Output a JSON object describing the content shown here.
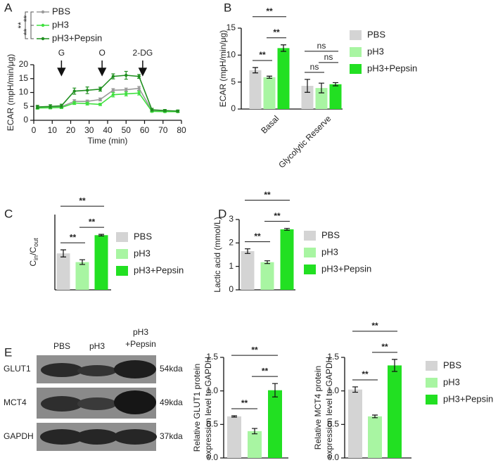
{
  "chart_data": [
    {
      "type": "line",
      "panel": "A",
      "x_label": "Time (min)",
      "y_label": "ECAR (mpH/min/μg)",
      "x": [
        2,
        9,
        15,
        22,
        29,
        36,
        43,
        50,
        57,
        64,
        71,
        78
      ],
      "xlim": [
        0,
        80
      ],
      "xticks": [
        0,
        10,
        20,
        30,
        40,
        50,
        60,
        70,
        80
      ],
      "ylim": [
        0,
        20
      ],
      "yticks": [
        0,
        5,
        10,
        15,
        20
      ],
      "series": [
        {
          "name": "PBS",
          "color": "#9a9a9a",
          "values": [
            4.6,
            4.7,
            4.9,
            6.8,
            6.8,
            7.5,
            10.8,
            11.0,
            11.5,
            3.5,
            3.3,
            3.2
          ],
          "errors": [
            0.5,
            0.4,
            0.4,
            0.6,
            0.5,
            0.5,
            0.6,
            0.6,
            0.7,
            0.3,
            0.3,
            0.3
          ]
        },
        {
          "name": "pH3",
          "color": "#3fe03f",
          "values": [
            4.4,
            4.5,
            4.6,
            6.2,
            6.0,
            5.7,
            9.2,
            9.5,
            9.8,
            3.2,
            3.1,
            3.1
          ],
          "errors": [
            0.4,
            0.4,
            0.4,
            0.5,
            0.5,
            0.4,
            0.8,
            0.7,
            0.7,
            0.3,
            0.3,
            0.3
          ]
        },
        {
          "name": "pH3+Pepsin",
          "color": "#1f8f1f",
          "values": [
            4.8,
            5.0,
            5.2,
            10.5,
            10.8,
            11.2,
            15.8,
            16.2,
            15.8,
            3.8,
            3.5,
            3.3
          ],
          "errors": [
            0.6,
            0.6,
            0.6,
            1.1,
            1.2,
            0.7,
            0.9,
            1.4,
            0.7,
            0.5,
            0.4,
            0.4
          ]
        }
      ],
      "annotations": [
        {
          "text": "G",
          "x": 15
        },
        {
          "text": "O",
          "x": 37
        },
        {
          "text": "2-DG",
          "x": 59
        }
      ],
      "legend_significance": [
        "**",
        "**",
        "**"
      ]
    },
    {
      "type": "bar",
      "panel": "B",
      "y_label": "ECAR (mpH/min/μg)",
      "categories": [
        "Basal",
        "Glycolytic Reserve"
      ],
      "ylim": [
        0,
        15
      ],
      "yticks": [
        0,
        5,
        10,
        15
      ],
      "series": [
        {
          "name": "PBS",
          "color": "#d4d4d4",
          "values": [
            7.2,
            4.3
          ],
          "errors": [
            0.5,
            1.2
          ]
        },
        {
          "name": "pH3",
          "color": "#a8f5a2",
          "values": [
            5.9,
            3.9
          ],
          "errors": [
            0.2,
            0.9
          ]
        },
        {
          "name": "pH3+Pepsin",
          "color": "#22e022",
          "values": [
            11.3,
            4.6
          ],
          "errors": [
            0.6,
            0.3
          ]
        }
      ],
      "significance": [
        [
          "**",
          "**",
          "**"
        ],
        [
          "ns",
          "ns",
          "ns"
        ]
      ]
    },
    {
      "type": "bar",
      "panel": "C",
      "y_label_parts": [
        "C",
        "in",
        "/C",
        "out"
      ],
      "categories": [
        null
      ],
      "ylim": [
        0,
        19
      ],
      "series": [
        {
          "name": "PBS",
          "color": "#d4d4d4",
          "values": [
            9.2
          ],
          "errors": [
            0.9
          ]
        },
        {
          "name": "pH3",
          "color": "#a8f5a2",
          "values": [
            7.0
          ],
          "errors": [
            0.6
          ]
        },
        {
          "name": "pH3+Pepsin",
          "color": "#22e022",
          "values": [
            13.8
          ],
          "errors": [
            0.2
          ]
        }
      ],
      "significance": [
        [
          "**",
          "**",
          "**"
        ]
      ]
    },
    {
      "type": "bar",
      "panel": "D",
      "y_label": "Lactic acid (mmol/L)",
      "categories": [
        null
      ],
      "ylim": [
        0,
        3
      ],
      "yticks": [
        0,
        1,
        2,
        3
      ],
      "series": [
        {
          "name": "PBS",
          "color": "#d4d4d4",
          "values": [
            1.65
          ],
          "errors": [
            0.1
          ]
        },
        {
          "name": "pH3",
          "color": "#a8f5a2",
          "values": [
            1.18
          ],
          "errors": [
            0.06
          ]
        },
        {
          "name": "pH3+Pepsin",
          "color": "#22e022",
          "values": [
            2.58
          ],
          "errors": [
            0.04
          ]
        }
      ],
      "significance": [
        [
          "**",
          "**",
          "**"
        ]
      ]
    },
    {
      "type": "bar",
      "y_label": [
        "Relative GLUT1 protein",
        "expression level to GAPDH"
      ],
      "categories": [
        null
      ],
      "ylim": [
        0,
        1.5
      ],
      "yticks": [
        {
          "value": 0,
          "label": "0.0"
        },
        0.5,
        {
          "value": 1,
          "label": "1.0"
        },
        1.5
      ],
      "series": [
        {
          "color": "#d4d4d4",
          "values": [
            0.62
          ],
          "errors": [
            0.01
          ]
        },
        {
          "color": "#a8f5a2",
          "values": [
            0.4
          ],
          "errors": [
            0.04
          ]
        },
        {
          "color": "#22e022",
          "values": [
            1.01
          ],
          "errors": [
            0.1
          ]
        }
      ],
      "significance": [
        [
          "**",
          "**",
          "**"
        ]
      ]
    },
    {
      "type": "bar",
      "y_label": [
        "Relative MCT4 protein",
        "expression level to GAPDH"
      ],
      "categories": [
        null
      ],
      "ylim": [
        0,
        1.5
      ],
      "yticks": [
        {
          "value": 0,
          "label": "0.0"
        },
        0.5,
        {
          "value": 1,
          "label": "1.0"
        },
        1.5
      ],
      "series": [
        {
          "name": "PBS",
          "color": "#d4d4d4",
          "values": [
            1.02
          ],
          "errors": [
            0.04
          ]
        },
        {
          "name": "pH3",
          "color": "#a8f5a2",
          "values": [
            0.62
          ],
          "errors": [
            0.02
          ]
        },
        {
          "name": "pH3+Pepsin",
          "color": "#22e022",
          "values": [
            1.38
          ],
          "errors": [
            0.09
          ]
        }
      ],
      "significance": [
        [
          "**",
          "**",
          "**"
        ]
      ]
    }
  ],
  "blot": {
    "panel": "E",
    "columns": [
      "PBS",
      "pH3",
      [
        "pH3",
        "+Pepsin"
      ]
    ],
    "rows": [
      {
        "label": "GLUT1",
        "size": "54kda"
      },
      {
        "label": "MCT4",
        "size": "49kda"
      },
      {
        "label": "GAPDH",
        "size": "37kda"
      }
    ]
  }
}
